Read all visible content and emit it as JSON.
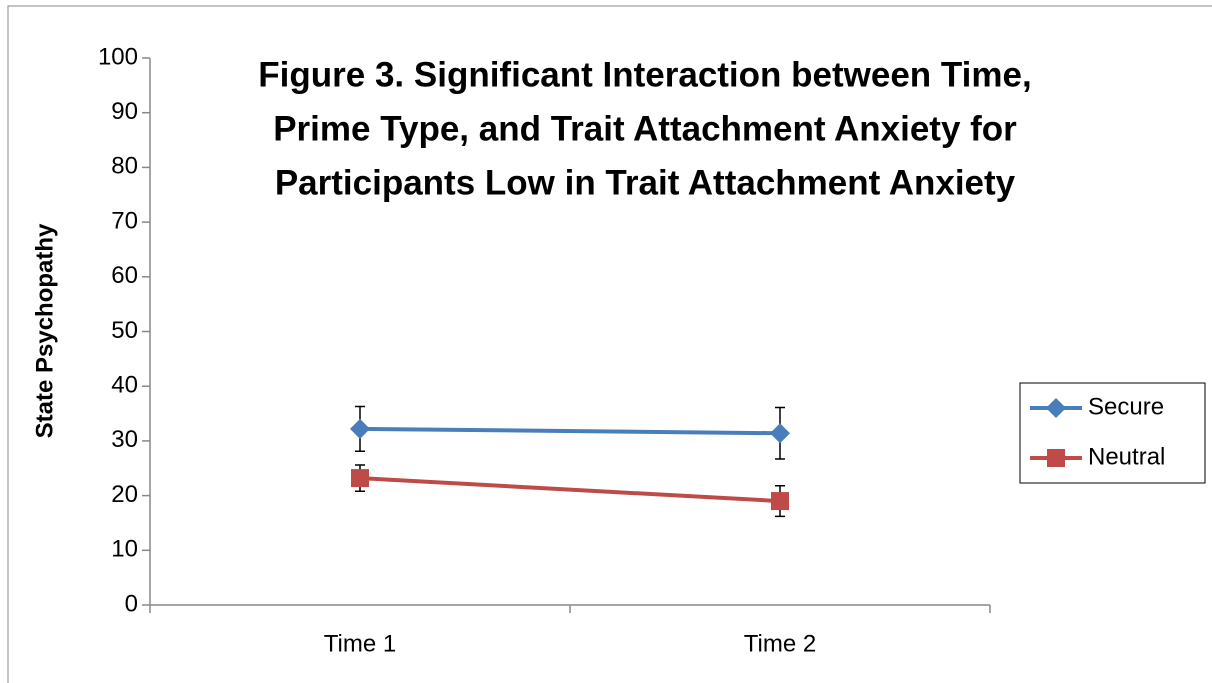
{
  "chart_data": {
    "type": "line",
    "title": [
      "Figure 3. Significant Interaction between Time,",
      "Prime Type, and Trait Attachment Anxiety for",
      "Participants Low in Trait Attachment Anxiety"
    ],
    "y_label": "State Psychopathy",
    "categories": [
      "Time 1",
      "Time 2"
    ],
    "series": [
      {
        "name": "Secure",
        "color": "#4a7ebb",
        "marker": "diamond",
        "values": [
          32.2,
          31.4
        ],
        "errors": [
          4.1,
          4.7
        ]
      },
      {
        "name": "Neutral",
        "color": "#be4b48",
        "marker": "square",
        "values": [
          23.2,
          19.0
        ],
        "errors": [
          2.4,
          2.8
        ]
      }
    ],
    "ylim": [
      0,
      100
    ],
    "yticks": [
      0,
      10,
      20,
      30,
      40,
      50,
      60,
      70,
      80,
      90,
      100
    ],
    "grid": false,
    "legend": "right"
  }
}
